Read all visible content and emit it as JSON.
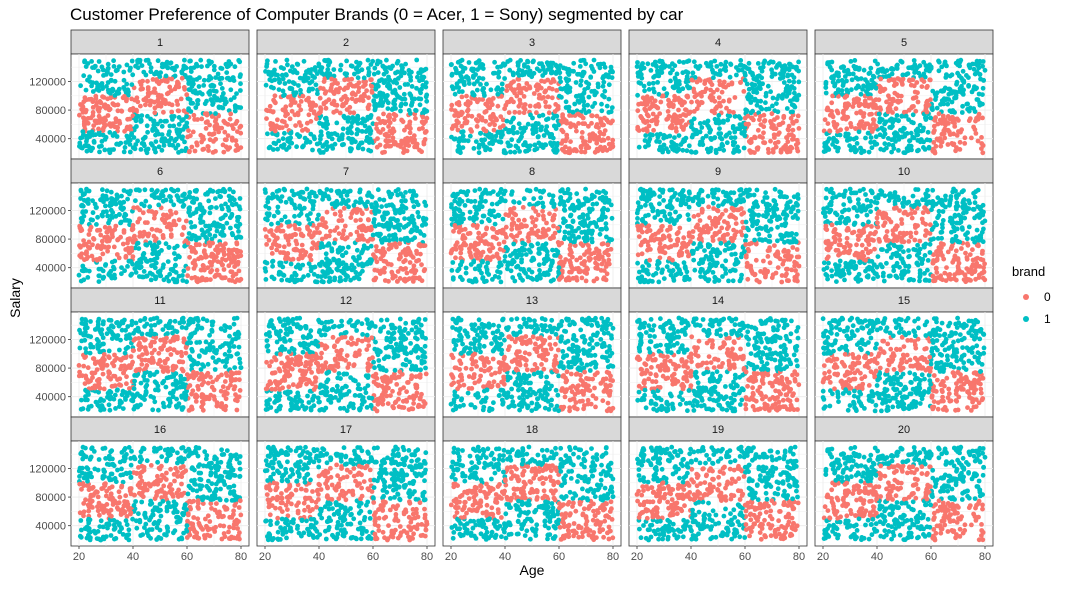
{
  "chart_data": {
    "type": "scatter",
    "title": "Customer Preference of Computer Brands (0 = Acer, 1 = Sony) segmented by car",
    "xlabel": "Age",
    "ylabel": "Salary",
    "facet_variable": "car",
    "facets": [
      "1",
      "2",
      "3",
      "4",
      "5",
      "6",
      "7",
      "8",
      "9",
      "10",
      "11",
      "12",
      "13",
      "14",
      "15",
      "16",
      "17",
      "18",
      "19",
      "20"
    ],
    "facet_layout": {
      "rows": 4,
      "cols": 5
    },
    "xlim": [
      20,
      80
    ],
    "ylim": [
      20000,
      150000
    ],
    "x_ticks": [
      20,
      40,
      60,
      80
    ],
    "y_ticks": [
      40000,
      80000,
      120000
    ],
    "x_tick_labels": [
      "20",
      "40",
      "60",
      "80"
    ],
    "y_tick_labels": [
      "40000",
      "80000",
      "120000"
    ],
    "grid": true,
    "legend": {
      "title": "brand",
      "position": "right",
      "entries": [
        {
          "label": "0",
          "color": "#F8766D"
        },
        {
          "label": "1",
          "color": "#00BFC4"
        }
      ]
    },
    "series": [
      {
        "name": "0",
        "color": "#F8766D"
      },
      {
        "name": "1",
        "color": "#00BFC4"
      }
    ],
    "pattern": {
      "description": "brand 0 (Acer) region",
      "regions": [
        {
          "age": [
            20,
            40
          ],
          "salary": [
            50000,
            100000
          ]
        },
        {
          "age": [
            40,
            60
          ],
          "salary": [
            75000,
            125000
          ]
        },
        {
          "age": [
            60,
            80
          ],
          "salary": [
            20000,
            75000
          ]
        }
      ]
    },
    "points_per_facet": 700
  }
}
